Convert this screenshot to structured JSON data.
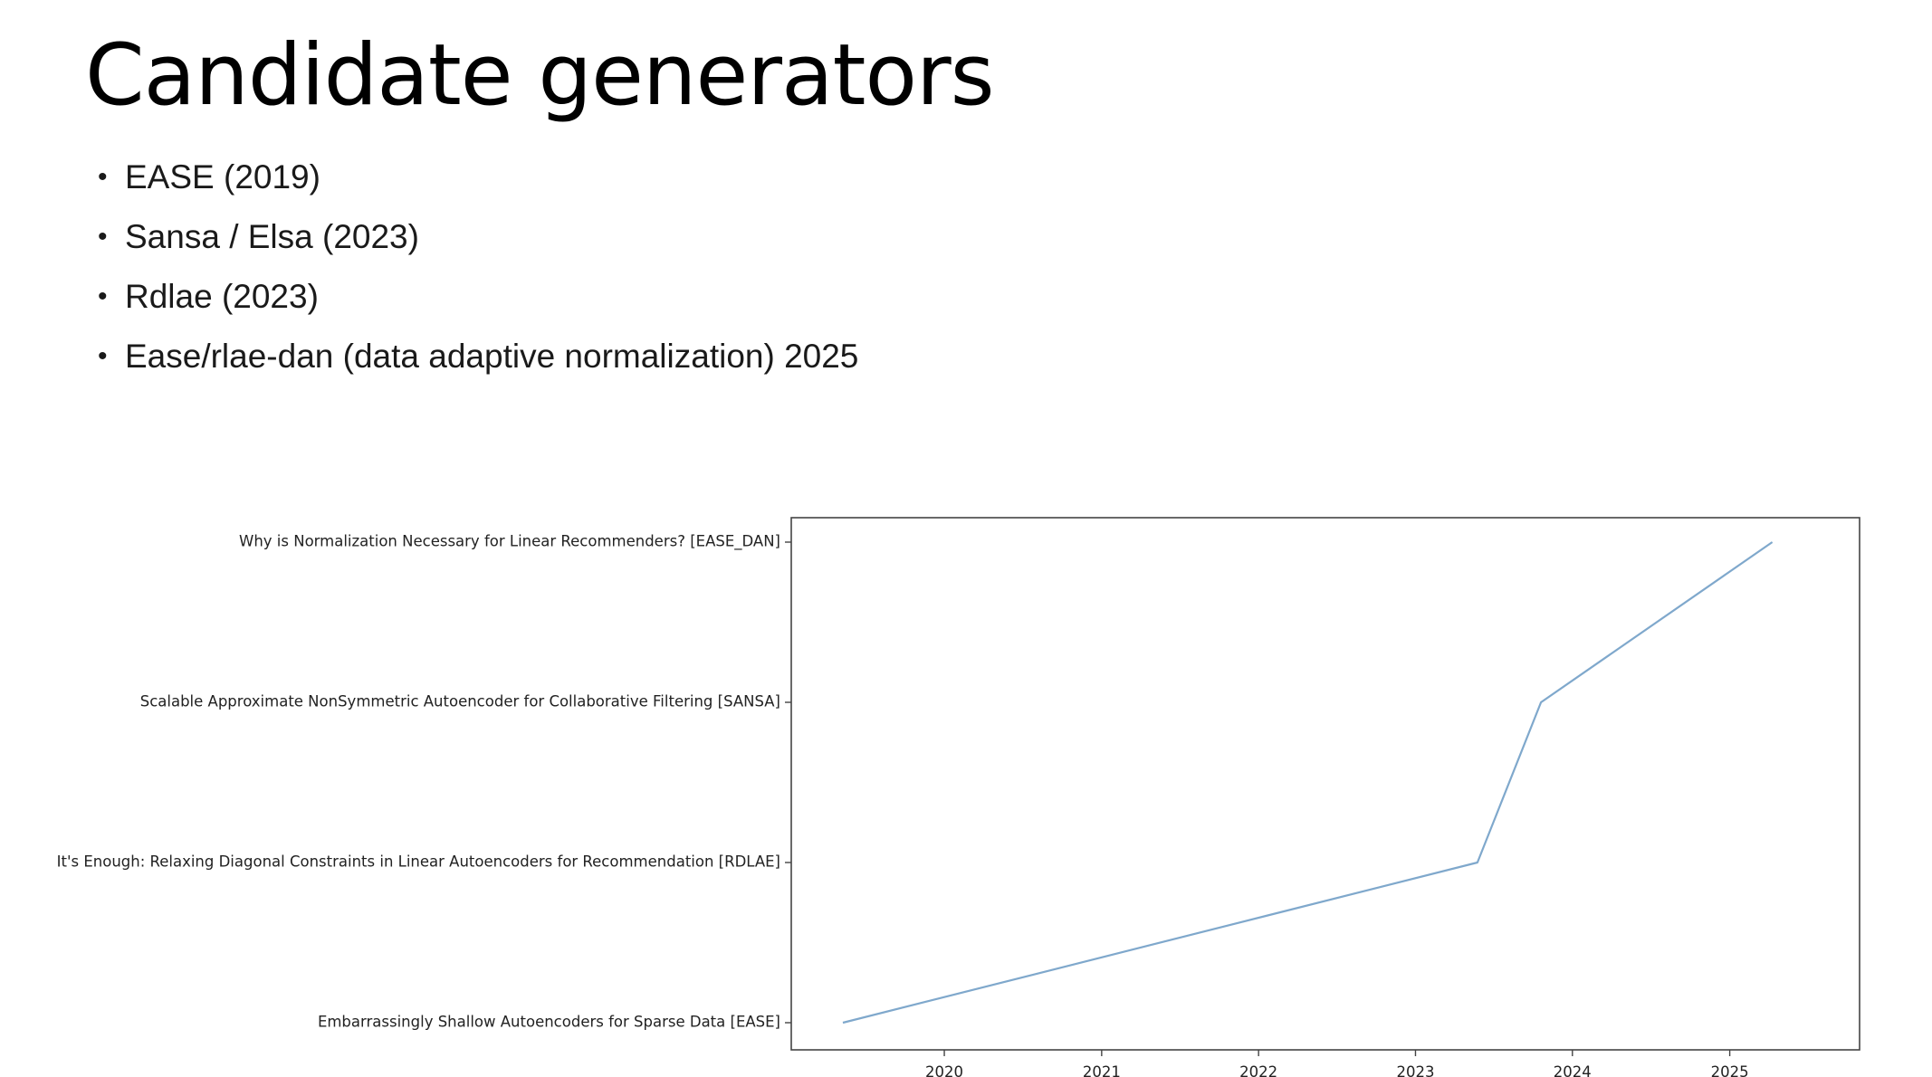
{
  "slide": {
    "title": "Candidate generators",
    "bullets": [
      "EASE (2019)",
      "Sansa / Elsa (2023)",
      "Rdlae (2023)",
      "Ease/rlae-dan (data adaptive normalization) 2025"
    ]
  },
  "chart_data": {
    "type": "line",
    "title": "",
    "xlabel": "",
    "ylabel": "",
    "x_ticks": [
      "2020",
      "2021",
      "2022",
      "2023",
      "2024",
      "2025"
    ],
    "xlim": [
      "2019-01-10",
      "2025-10-30"
    ],
    "y_categories": [
      "Embarrassingly Shallow Autoencoders for Sparse Data [EASE]",
      "It's Enough: Relaxing Diagonal Constraints in Linear Autoencoders for Recommendation [RDLAE]",
      "Scalable Approximate NonSymmetric Autoencoder for Collaborative Filtering [SANSA]",
      "Why is Normalization Necessary for Linear Recommenders? [EASE_DAN]"
    ],
    "series": [
      {
        "x": [
          "2019-05-10",
          "2023-05-25",
          "2023-10-20",
          "2025-04-10"
        ],
        "y": [
          "Embarrassingly Shallow Autoencoders for Sparse Data [EASE]",
          "It's Enough: Relaxing Diagonal Constraints in Linear Autoencoders for Recommendation [RDLAE]",
          "Scalable Approximate NonSymmetric Autoencoder for Collaborative Filtering [SANSA]",
          "Why is Normalization Necessary for Linear Recommenders? [EASE_DAN]"
        ],
        "color": "#7fa8cc"
      }
    ],
    "grid": false,
    "legend": "none"
  }
}
